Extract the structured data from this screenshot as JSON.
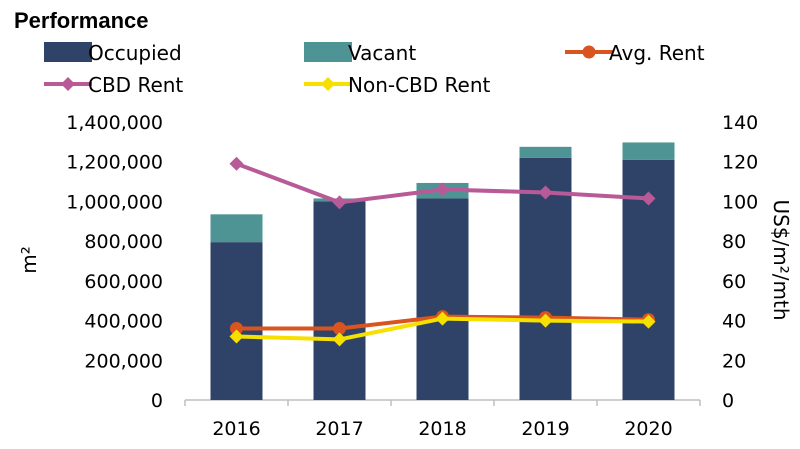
{
  "chart_data": {
    "type": "bar",
    "title": "Performance",
    "categories": [
      "2016",
      "2017",
      "2018",
      "2019",
      "2020"
    ],
    "series": [
      {
        "name": "Occupied",
        "kind": "stacked-bar",
        "axis": "left",
        "color": "#2f4368",
        "values": [
          795000,
          1000000,
          1015000,
          1220000,
          1210000
        ]
      },
      {
        "name": "Vacant",
        "kind": "stacked-bar",
        "axis": "left",
        "color": "#4e9495",
        "values": [
          140000,
          15000,
          78000,
          55000,
          87000
        ]
      },
      {
        "name": "Avg. Rent",
        "kind": "line",
        "marker": "circle",
        "axis": "right",
        "color": "#d9541e",
        "values": [
          36,
          36,
          42,
          41.5,
          40.5
        ]
      },
      {
        "name": "CBD Rent",
        "kind": "line",
        "marker": "diamond",
        "axis": "right",
        "color": "#b85a98",
        "values": [
          119,
          99.5,
          106,
          104.5,
          101.5
        ]
      },
      {
        "name": "Non-CBD Rent",
        "kind": "line",
        "marker": "diamond",
        "axis": "right",
        "color": "#f5e000",
        "values": [
          32,
          30.5,
          41,
          40,
          39.5
        ]
      }
    ],
    "y_left": {
      "label": "m²",
      "range": [
        0,
        1400000
      ],
      "ticks": [
        "0",
        "200,000",
        "400,000",
        "600,000",
        "800,000",
        "1,000,000",
        "1,200,000",
        "1,400,000"
      ]
    },
    "y_right": {
      "label": "US$/m²/mth",
      "range": [
        0,
        140
      ],
      "ticks": [
        "0",
        "20",
        "40",
        "60",
        "80",
        "100",
        "120",
        "140"
      ]
    },
    "grid": false,
    "legend_position": "top"
  }
}
